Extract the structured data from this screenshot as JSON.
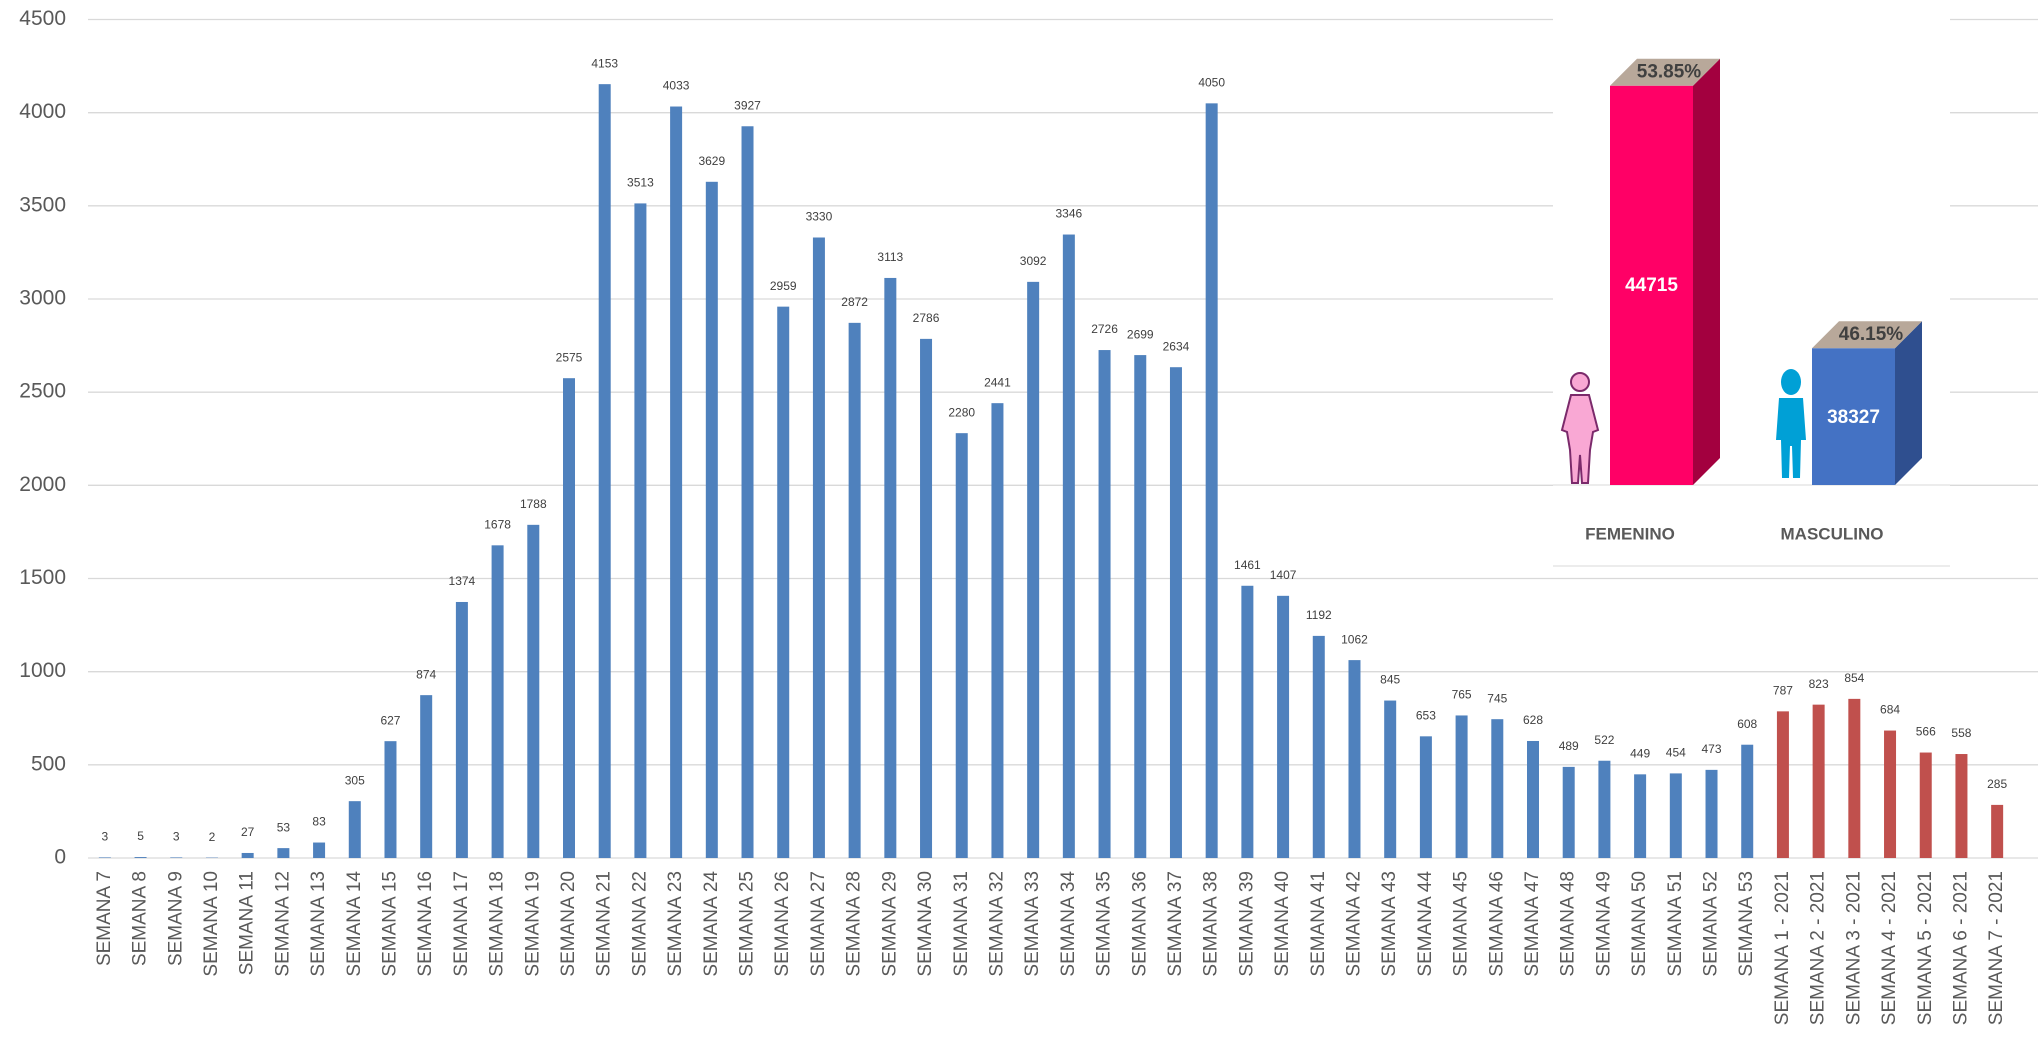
{
  "chart_data": [
    {
      "type": "bar",
      "categories": [
        "SEMANA 7",
        "SEMANA 8",
        "SEMANA 9",
        "SEMANA 10",
        "SEMANA 11",
        "SEMANA 12",
        "SEMANA 13",
        "SEMANA 14",
        "SEMANA 15",
        "SEMANA 16",
        "SEMANA 17",
        "SEMANA 18",
        "SEMANA 19",
        "SEMANA 20",
        "SEMANA 21",
        "SEMANA 22",
        "SEMANA 23",
        "SEMANA 24",
        "SEMANA 25",
        "SEMANA 26",
        "SEMANA 27",
        "SEMANA 28",
        "SEMANA 29",
        "SEMANA 30",
        "SEMANA 31",
        "SEMANA 32",
        "SEMANA 33",
        "SEMANA 34",
        "SEMANA 35",
        "SEMANA 36",
        "SEMANA 37",
        "SEMANA 38",
        "SEMANA 39",
        "SEMANA 40",
        "SEMANA 41",
        "SEMANA 42",
        "SEMANA 43",
        "SEMANA 44",
        "SEMANA 45",
        "SEMANA 46",
        "SEMANA 47",
        "SEMANA 48",
        "SEMANA 49",
        "SEMANA 50",
        "SEMANA 51",
        "SEMANA 52",
        "SEMANA 53",
        "SEMANA 1 - 2021",
        "SEMANA 2 - 2021",
        "SEMANA 3 - 2021",
        "SEMANA 4 - 2021",
        "SEMANA 5 - 2021",
        "SEMANA 6 - 2021",
        "SEMANA 7 - 2021"
      ],
      "values": [
        3,
        5,
        3,
        2,
        27,
        53,
        83,
        305,
        627,
        874,
        1374,
        1678,
        1788,
        2575,
        4153,
        3513,
        4033,
        3629,
        3927,
        2959,
        3330,
        2872,
        3113,
        2786,
        2280,
        2441,
        3092,
        3346,
        2726,
        2699,
        2634,
        4050,
        1461,
        1407,
        1192,
        1062,
        845,
        653,
        765,
        745,
        628,
        489,
        522,
        449,
        454,
        473,
        608,
        787,
        823,
        854,
        684,
        566,
        558,
        285
      ],
      "colors": [
        "#4f81bd",
        "#4f81bd",
        "#4f81bd",
        "#4f81bd",
        "#4f81bd",
        "#4f81bd",
        "#4f81bd",
        "#4f81bd",
        "#4f81bd",
        "#4f81bd",
        "#4f81bd",
        "#4f81bd",
        "#4f81bd",
        "#4f81bd",
        "#4f81bd",
        "#4f81bd",
        "#4f81bd",
        "#4f81bd",
        "#4f81bd",
        "#4f81bd",
        "#4f81bd",
        "#4f81bd",
        "#4f81bd",
        "#4f81bd",
        "#4f81bd",
        "#4f81bd",
        "#4f81bd",
        "#4f81bd",
        "#4f81bd",
        "#4f81bd",
        "#4f81bd",
        "#4f81bd",
        "#4f81bd",
        "#4f81bd",
        "#4f81bd",
        "#4f81bd",
        "#4f81bd",
        "#4f81bd",
        "#4f81bd",
        "#4f81bd",
        "#4f81bd",
        "#4f81bd",
        "#4f81bd",
        "#4f81bd",
        "#4f81bd",
        "#4f81bd",
        "#4f81bd",
        "#c0504d",
        "#c0504d",
        "#c0504d",
        "#c0504d",
        "#c0504d",
        "#c0504d",
        "#c0504d"
      ],
      "ylim": [
        0,
        4500
      ],
      "yticks": [
        0,
        500,
        1000,
        1500,
        2000,
        2500,
        3000,
        3500,
        4000,
        4500
      ],
      "grid": true
    },
    {
      "type": "bar3d",
      "categories": [
        "FEMENINO",
        "MASCULINO"
      ],
      "values": [
        44715,
        38327
      ],
      "shares": [
        53.85,
        46.15
      ],
      "share_labels": [
        "53.85%",
        "46.15%"
      ],
      "colors": [
        "#ff0066",
        "#4472c4"
      ],
      "side_colors": [
        "#a3003f",
        "#2f4f8f"
      ],
      "top_color": "#b8a89a",
      "ylim": [
        35000,
        46000
      ]
    }
  ]
}
